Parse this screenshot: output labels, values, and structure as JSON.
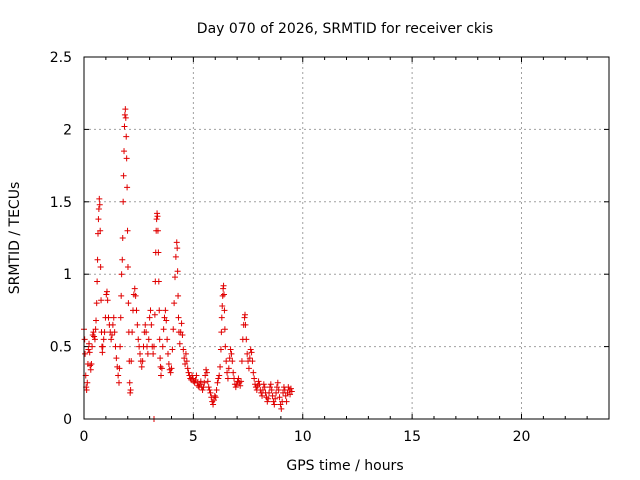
{
  "chart_data": {
    "type": "scatter",
    "title": "Day 070 of 2026, SRMTID for receiver ckis",
    "xlabel": "GPS time / hours",
    "ylabel": "SRMTID / TECUs",
    "xlim": [
      0,
      24
    ],
    "ylim": [
      0,
      2.5
    ],
    "xticks": [
      0,
      5,
      10,
      15,
      20
    ],
    "xtick_labels": [
      "0",
      "5",
      "10",
      "15",
      "20"
    ],
    "yticks": [
      0,
      0.5,
      1,
      1.5,
      2,
      2.5
    ],
    "ytick_labels": [
      "0",
      "0.5",
      "1",
      "1.5",
      "2",
      "2.5"
    ],
    "grid": true,
    "marker": "plus",
    "series": [
      {
        "name": "SRMTID",
        "color": "#e00000",
        "points": [
          [
            0.0,
            0.62
          ],
          [
            0.03,
            0.55
          ],
          [
            0.05,
            0.45
          ],
          [
            0.08,
            0.3
          ],
          [
            0.1,
            0.22
          ],
          [
            0.12,
            0.2
          ],
          [
            0.15,
            0.25
          ],
          [
            0.18,
            0.38
          ],
          [
            0.2,
            0.48
          ],
          [
            0.23,
            0.52
          ],
          [
            0.26,
            0.46
          ],
          [
            0.28,
            0.37
          ],
          [
            0.31,
            0.34
          ],
          [
            0.34,
            0.38
          ],
          [
            0.37,
            0.5
          ],
          [
            0.4,
            0.58
          ],
          [
            0.43,
            0.6
          ],
          [
            0.46,
            0.57
          ],
          [
            0.5,
            0.55
          ],
          [
            0.53,
            0.62
          ],
          [
            0.55,
            0.68
          ],
          [
            0.58,
            0.8
          ],
          [
            0.6,
            0.95
          ],
          [
            0.62,
            1.1
          ],
          [
            0.64,
            1.28
          ],
          [
            0.66,
            1.38
          ],
          [
            0.68,
            1.45
          ],
          [
            0.7,
            1.52
          ],
          [
            0.72,
            1.48
          ],
          [
            0.74,
            1.3
          ],
          [
            0.76,
            1.05
          ],
          [
            0.78,
            0.82
          ],
          [
            0.8,
            0.6
          ],
          [
            0.82,
            0.5
          ],
          [
            0.84,
            0.46
          ],
          [
            0.86,
            0.5
          ],
          [
            0.9,
            0.55
          ],
          [
            0.94,
            0.6
          ],
          [
            0.98,
            0.7
          ],
          [
            1.02,
            0.86
          ],
          [
            1.05,
            0.88
          ],
          [
            1.08,
            0.82
          ],
          [
            1.12,
            0.7
          ],
          [
            1.16,
            0.65
          ],
          [
            1.2,
            0.6
          ],
          [
            1.24,
            0.55
          ],
          [
            1.28,
            0.58
          ],
          [
            1.32,
            0.65
          ],
          [
            1.36,
            0.7
          ],
          [
            1.4,
            0.6
          ],
          [
            1.44,
            0.5
          ],
          [
            1.48,
            0.42
          ],
          [
            1.52,
            0.36
          ],
          [
            1.56,
            0.3
          ],
          [
            1.6,
            0.25
          ],
          [
            1.62,
            0.35
          ],
          [
            1.65,
            0.5
          ],
          [
            1.68,
            0.7
          ],
          [
            1.7,
            0.85
          ],
          [
            1.72,
            1.0
          ],
          [
            1.75,
            1.1
          ],
          [
            1.77,
            1.25
          ],
          [
            1.79,
            1.5
          ],
          [
            1.81,
            1.68
          ],
          [
            1.83,
            1.85
          ],
          [
            1.85,
            2.02
          ],
          [
            1.87,
            2.1
          ],
          [
            1.89,
            2.14
          ],
          [
            1.91,
            2.08
          ],
          [
            1.93,
            1.95
          ],
          [
            1.95,
            1.8
          ],
          [
            1.97,
            1.6
          ],
          [
            1.99,
            1.3
          ],
          [
            2.01,
            1.05
          ],
          [
            2.03,
            0.8
          ],
          [
            2.05,
            0.6
          ],
          [
            2.07,
            0.4
          ],
          [
            2.09,
            0.25
          ],
          [
            2.11,
            0.18
          ],
          [
            2.13,
            0.2
          ],
          [
            2.16,
            0.4
          ],
          [
            2.2,
            0.6
          ],
          [
            2.24,
            0.75
          ],
          [
            2.28,
            0.86
          ],
          [
            2.32,
            0.9
          ],
          [
            2.36,
            0.85
          ],
          [
            2.4,
            0.75
          ],
          [
            2.44,
            0.65
          ],
          [
            2.48,
            0.55
          ],
          [
            2.52,
            0.5
          ],
          [
            2.56,
            0.45
          ],
          [
            2.6,
            0.4
          ],
          [
            2.64,
            0.36
          ],
          [
            2.68,
            0.4
          ],
          [
            2.72,
            0.5
          ],
          [
            2.76,
            0.6
          ],
          [
            2.8,
            0.65
          ],
          [
            2.84,
            0.6
          ],
          [
            2.88,
            0.5
          ],
          [
            2.92,
            0.45
          ],
          [
            2.96,
            0.55
          ],
          [
            3.0,
            0.7
          ],
          [
            3.04,
            0.75
          ],
          [
            3.08,
            0.65
          ],
          [
            3.12,
            0.5
          ],
          [
            3.16,
            0.45
          ],
          [
            3.2,
            0.5
          ],
          [
            3.24,
            0.72
          ],
          [
            3.26,
            0.95
          ],
          [
            3.28,
            1.15
          ],
          [
            3.3,
            1.3
          ],
          [
            3.32,
            1.38
          ],
          [
            3.34,
            1.42
          ],
          [
            3.36,
            1.4
          ],
          [
            3.38,
            1.3
          ],
          [
            3.4,
            1.15
          ],
          [
            3.42,
            0.95
          ],
          [
            3.44,
            0.75
          ],
          [
            3.46,
            0.55
          ],
          [
            3.48,
            0.42
          ],
          [
            3.5,
            0.36
          ],
          [
            3.52,
            0.3
          ],
          [
            3.56,
            0.35
          ],
          [
            3.6,
            0.5
          ],
          [
            3.64,
            0.62
          ],
          [
            3.68,
            0.7
          ],
          [
            3.72,
            0.75
          ],
          [
            3.76,
            0.68
          ],
          [
            3.8,
            0.55
          ],
          [
            3.84,
            0.45
          ],
          [
            3.88,
            0.38
          ],
          [
            3.92,
            0.34
          ],
          [
            3.96,
            0.32
          ],
          [
            4.0,
            0.35
          ],
          [
            4.04,
            0.48
          ],
          [
            4.08,
            0.62
          ],
          [
            4.12,
            0.8
          ],
          [
            4.16,
            0.98
          ],
          [
            4.2,
            1.12
          ],
          [
            4.24,
            1.22
          ],
          [
            4.26,
            1.18
          ],
          [
            4.28,
            1.02
          ],
          [
            4.3,
            0.85
          ],
          [
            4.32,
            0.7
          ],
          [
            4.34,
            0.6
          ],
          [
            4.38,
            0.52
          ],
          [
            4.42,
            0.6
          ],
          [
            4.46,
            0.66
          ],
          [
            4.5,
            0.58
          ],
          [
            4.54,
            0.48
          ],
          [
            4.58,
            0.42
          ],
          [
            4.62,
            0.38
          ],
          [
            4.66,
            0.45
          ],
          [
            4.7,
            0.4
          ],
          [
            4.74,
            0.35
          ],
          [
            4.78,
            0.32
          ],
          [
            4.82,
            0.3
          ],
          [
            4.86,
            0.28
          ],
          [
            4.9,
            0.27
          ],
          [
            4.94,
            0.3
          ],
          [
            4.98,
            0.28
          ],
          [
            5.02,
            0.26
          ],
          [
            5.06,
            0.25
          ],
          [
            5.1,
            0.27
          ],
          [
            5.14,
            0.3
          ],
          [
            5.18,
            0.25
          ],
          [
            5.22,
            0.23
          ],
          [
            5.26,
            0.22
          ],
          [
            5.3,
            0.24
          ],
          [
            5.34,
            0.26
          ],
          [
            5.38,
            0.22
          ],
          [
            5.42,
            0.2
          ],
          [
            5.46,
            0.22
          ],
          [
            5.5,
            0.25
          ],
          [
            5.54,
            0.3
          ],
          [
            5.58,
            0.34
          ],
          [
            5.62,
            0.32
          ],
          [
            5.66,
            0.26
          ],
          [
            5.7,
            0.22
          ],
          [
            5.74,
            0.2
          ],
          [
            5.78,
            0.18
          ],
          [
            5.82,
            0.15
          ],
          [
            5.86,
            0.12
          ],
          [
            5.9,
            0.1
          ],
          [
            5.94,
            0.13
          ],
          [
            5.98,
            0.16
          ],
          [
            6.02,
            0.15
          ],
          [
            6.06,
            0.2
          ],
          [
            6.1,
            0.25
          ],
          [
            6.14,
            0.28
          ],
          [
            6.18,
            0.3
          ],
          [
            6.22,
            0.36
          ],
          [
            6.26,
            0.48
          ],
          [
            6.28,
            0.6
          ],
          [
            6.3,
            0.7
          ],
          [
            6.32,
            0.78
          ],
          [
            6.34,
            0.85
          ],
          [
            6.36,
            0.9
          ],
          [
            6.38,
            0.92
          ],
          [
            6.4,
            0.86
          ],
          [
            6.42,
            0.75
          ],
          [
            6.44,
            0.62
          ],
          [
            6.46,
            0.5
          ],
          [
            6.5,
            0.4
          ],
          [
            6.54,
            0.32
          ],
          [
            6.58,
            0.28
          ],
          [
            6.62,
            0.35
          ],
          [
            6.66,
            0.42
          ],
          [
            6.7,
            0.48
          ],
          [
            6.74,
            0.45
          ],
          [
            6.78,
            0.4
          ],
          [
            6.82,
            0.32
          ],
          [
            6.86,
            0.28
          ],
          [
            6.9,
            0.24
          ],
          [
            6.94,
            0.22
          ],
          [
            6.98,
            0.24
          ],
          [
            7.02,
            0.26
          ],
          [
            7.06,
            0.28
          ],
          [
            7.1,
            0.25
          ],
          [
            7.14,
            0.23
          ],
          [
            7.18,
            0.26
          ],
          [
            7.22,
            0.4
          ],
          [
            7.26,
            0.55
          ],
          [
            7.3,
            0.65
          ],
          [
            7.34,
            0.7
          ],
          [
            7.36,
            0.72
          ],
          [
            7.38,
            0.65
          ],
          [
            7.42,
            0.55
          ],
          [
            7.46,
            0.45
          ],
          [
            7.5,
            0.4
          ],
          [
            7.54,
            0.35
          ],
          [
            7.58,
            0.42
          ],
          [
            7.62,
            0.48
          ],
          [
            7.66,
            0.46
          ],
          [
            7.7,
            0.4
          ],
          [
            7.74,
            0.32
          ],
          [
            7.78,
            0.28
          ],
          [
            7.82,
            0.24
          ],
          [
            7.86,
            0.22
          ],
          [
            7.9,
            0.2
          ],
          [
            7.94,
            0.23
          ],
          [
            7.98,
            0.26
          ],
          [
            8.02,
            0.24
          ],
          [
            8.06,
            0.2
          ],
          [
            8.1,
            0.18
          ],
          [
            8.14,
            0.16
          ],
          [
            8.18,
            0.2
          ],
          [
            8.22,
            0.24
          ],
          [
            8.26,
            0.22
          ],
          [
            8.3,
            0.18
          ],
          [
            8.34,
            0.15
          ],
          [
            8.38,
            0.12
          ],
          [
            8.42,
            0.14
          ],
          [
            8.46,
            0.18
          ],
          [
            8.5,
            0.22
          ],
          [
            8.54,
            0.24
          ],
          [
            8.58,
            0.2
          ],
          [
            8.62,
            0.16
          ],
          [
            8.66,
            0.12
          ],
          [
            8.7,
            0.1
          ],
          [
            8.74,
            0.14
          ],
          [
            8.78,
            0.18
          ],
          [
            8.82,
            0.22
          ],
          [
            8.86,
            0.25
          ],
          [
            8.9,
            0.2
          ],
          [
            8.94,
            0.15
          ],
          [
            8.98,
            0.1
          ],
          [
            9.02,
            0.07
          ],
          [
            9.06,
            0.12
          ],
          [
            9.1,
            0.18
          ],
          [
            9.14,
            0.22
          ],
          [
            9.18,
            0.2
          ],
          [
            9.22,
            0.16
          ],
          [
            9.26,
            0.12
          ],
          [
            9.3,
            0.18
          ],
          [
            9.34,
            0.22
          ],
          [
            9.38,
            0.2
          ],
          [
            9.42,
            0.17
          ],
          [
            9.46,
            0.21
          ],
          [
            9.5,
            0.19
          ]
        ]
      }
    ],
    "outliers": [
      [
        3.2,
        0.0
      ]
    ]
  }
}
